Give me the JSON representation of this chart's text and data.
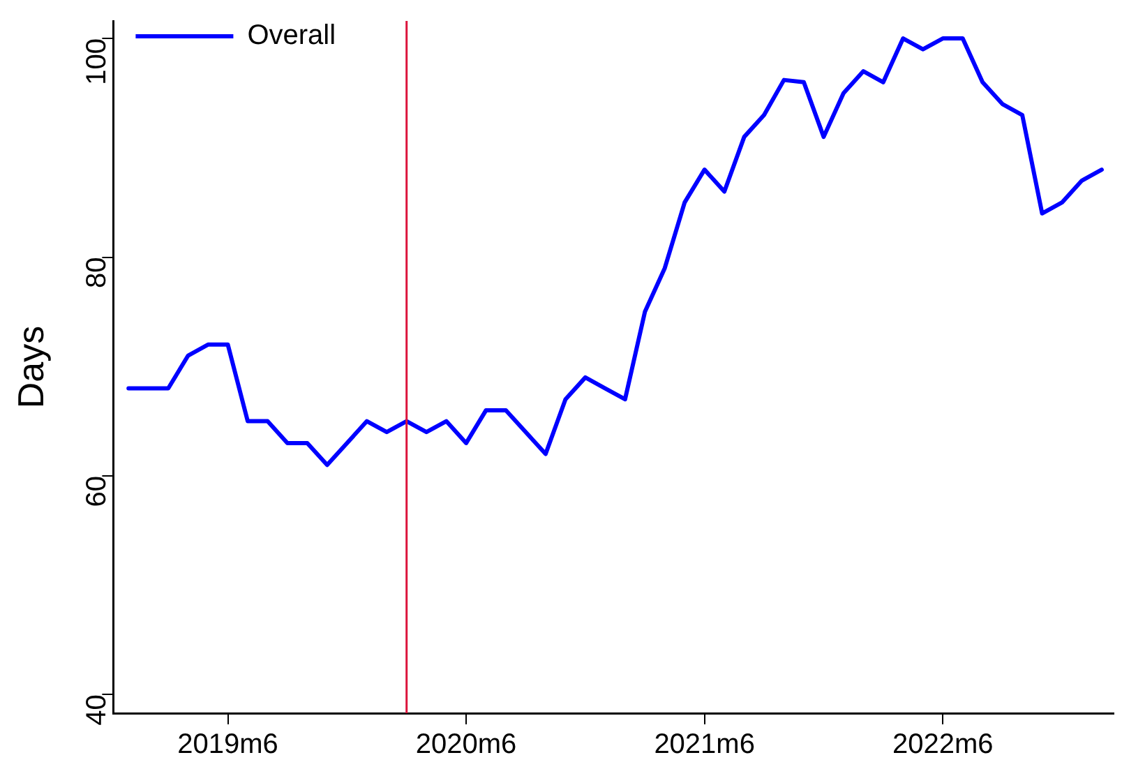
{
  "chart_data": {
    "type": "line",
    "ylabel": "Days",
    "x": [
      "2019-01",
      "2019-02",
      "2019-03",
      "2019-04",
      "2019-05",
      "2019-06",
      "2019-07",
      "2019-08",
      "2019-09",
      "2019-10",
      "2019-11",
      "2019-12",
      "2020-01",
      "2020-02",
      "2020-03",
      "2020-04",
      "2020-05",
      "2020-06",
      "2020-07",
      "2020-08",
      "2020-09",
      "2020-10",
      "2020-11",
      "2020-12",
      "2021-01",
      "2021-02",
      "2021-03",
      "2021-04",
      "2021-05",
      "2021-06",
      "2021-07",
      "2021-08",
      "2021-09",
      "2021-10",
      "2021-11",
      "2021-12",
      "2022-01",
      "2022-02",
      "2022-03",
      "2022-04",
      "2022-05",
      "2022-06",
      "2022-07",
      "2022-08",
      "2022-09",
      "2022-10",
      "2022-11",
      "2022-12",
      "2023-01",
      "2023-02"
    ],
    "series": [
      {
        "name": "Overall",
        "color": "#0000ff",
        "values": [
          68,
          68,
          68,
          71,
          72,
          72,
          65,
          65,
          63,
          63,
          61,
          63,
          65,
          64,
          65,
          64,
          65,
          63,
          66,
          66,
          64,
          62,
          67,
          69,
          68,
          67,
          75,
          79,
          85,
          88,
          86,
          91,
          93,
          96.2,
          96,
          91,
          95,
          97,
          96,
          100,
          99,
          100,
          100,
          96,
          94,
          93,
          84,
          85,
          87,
          88
        ]
      }
    ],
    "xlim": [
      "2018-12-08",
      "2023-02-19"
    ],
    "xticks": [
      {
        "value": "2019-06",
        "label": "2019m6"
      },
      {
        "value": "2020-06",
        "label": "2020m6"
      },
      {
        "value": "2021-06",
        "label": "2021m6"
      },
      {
        "value": "2022-06",
        "label": "2022m6"
      }
    ],
    "ylim": [
      38.3,
      101.6
    ],
    "yticks": [
      40,
      60,
      80,
      100
    ],
    "ref_lines": [
      {
        "axis": "x",
        "value": "2020-03",
        "color": "#dc143c"
      }
    ],
    "grid": false,
    "legend": "top left",
    "marker": "none",
    "line_style": "solid"
  }
}
